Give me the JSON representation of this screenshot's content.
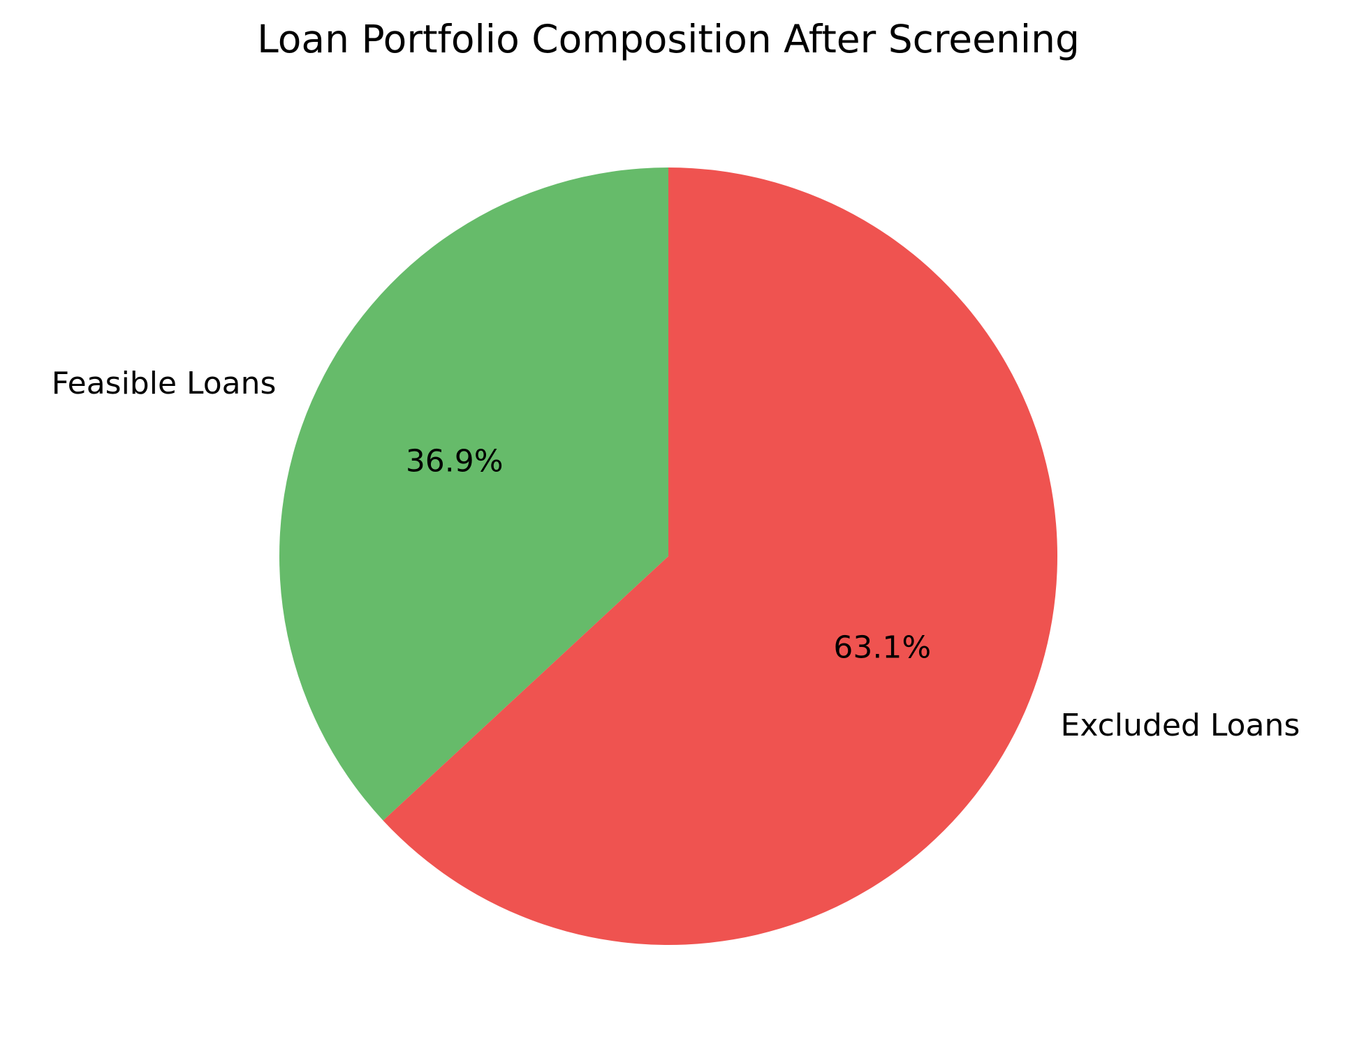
{
  "chart_data": {
    "type": "pie",
    "title": "Loan Portfolio Composition After Screening",
    "startangle": 90,
    "direction": "counterclockwise",
    "slices": [
      {
        "label": "Feasible Loans",
        "value": 36.9,
        "pct_label": "36.9%",
        "color": "#66bb6a"
      },
      {
        "label": "Excluded Loans",
        "value": 63.1,
        "pct_label": "63.1%",
        "color": "#ef5350"
      }
    ]
  }
}
